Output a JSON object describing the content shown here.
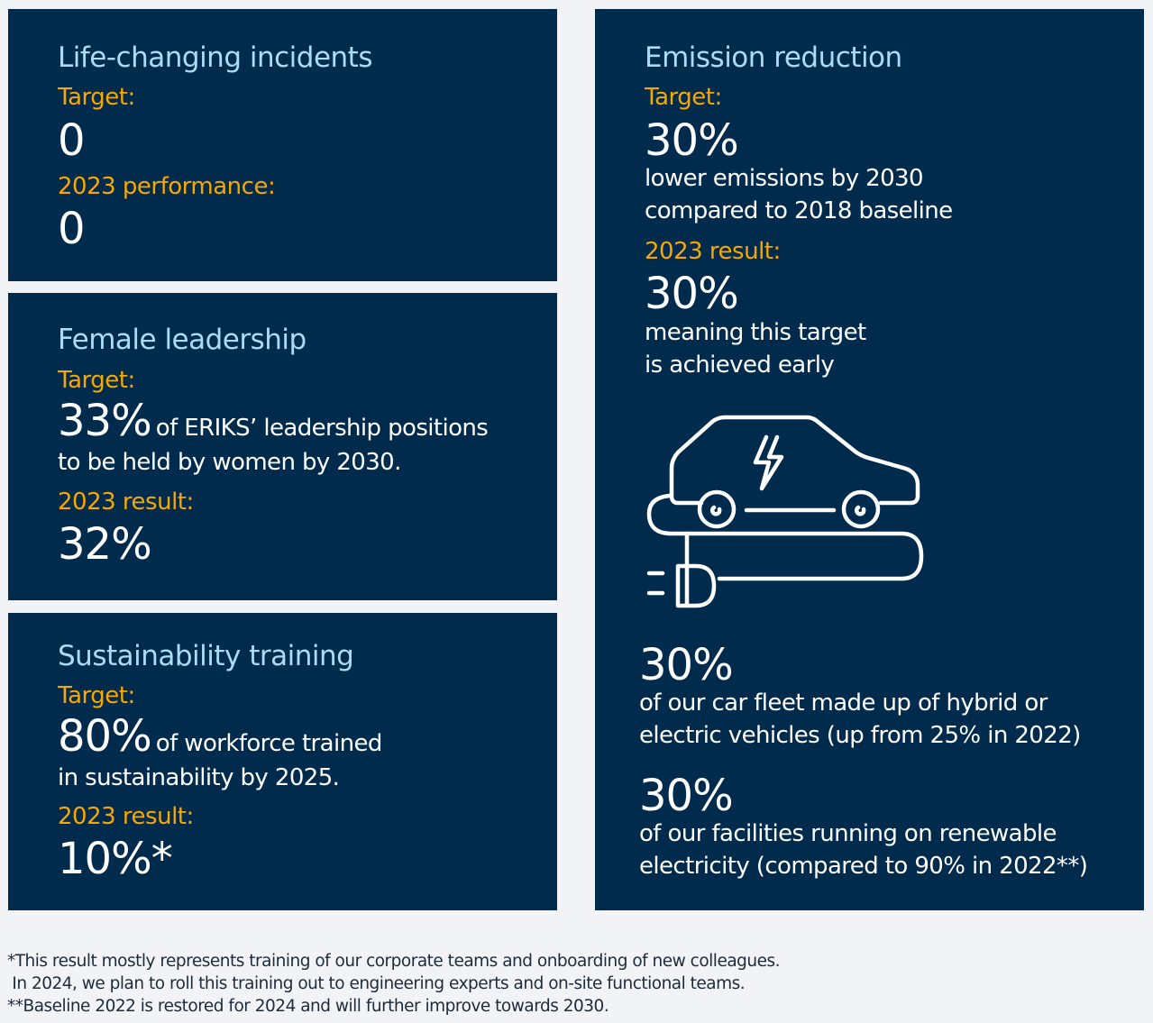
{
  "incidents": {
    "title": "Life-changing incidents",
    "target_label": "Target:",
    "target_value": "0",
    "perf_label": "2023 performance:",
    "perf_value": "0"
  },
  "female": {
    "title": "Female leadership",
    "target_label": "Target:",
    "target_value": "33%",
    "target_text_1": "of ERIKS’ leadership positions",
    "target_text_2": "to be held by women by 2030.",
    "result_label": "2023 result:",
    "result_value": "32%"
  },
  "training": {
    "title": "Sustainability training",
    "target_label": "Target:",
    "target_value": "80%",
    "target_text_1": "of workforce trained",
    "target_text_2": "in sustainability by 2025.",
    "result_label": "2023 result:",
    "result_value": "10%*"
  },
  "emission": {
    "title": "Emission reduction",
    "target_label": "Target:",
    "target_value": "30%",
    "target_text_1": "lower emissions by 2030",
    "target_text_2": "compared to 2018 baseline",
    "result_label": "2023 result:",
    "result_value": "30%",
    "result_text_1": "meaning this target",
    "result_text_2": "is achieved early",
    "icon": "electric-car-icon",
    "fleet_value": "30%",
    "fleet_text_1": "of our car fleet made up of hybrid or",
    "fleet_text_2": "electric vehicles (up from 25% in 2022)",
    "facilities_value": "30%",
    "facilities_text_1": "of our facilities running on renewable",
    "facilities_text_2": "electricity (compared to 90% in 2022**)"
  },
  "footnotes": [
    "*This result mostly represents training of our corporate teams and onboarding of new colleagues.",
    " In 2024, we plan to roll this training out to engineering experts and on-site functional teams.",
    "**Baseline 2022 is restored for 2024 and will further improve towards 2030."
  ],
  "colors": {
    "panel": "#002b4d",
    "title": "#a9dcf5",
    "label": "#f7a800",
    "background": "#f2f3f6"
  }
}
